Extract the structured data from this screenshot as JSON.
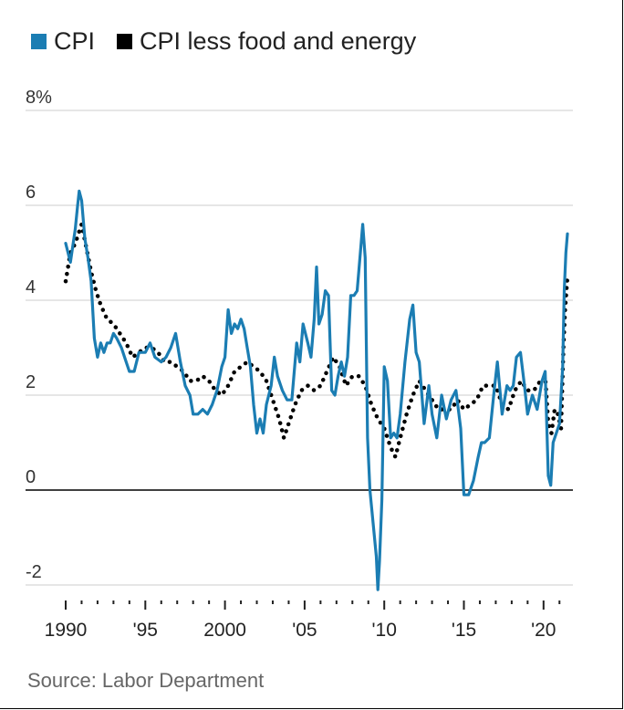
{
  "chart_data": {
    "type": "line",
    "title": "",
    "xlabel": "",
    "ylabel": "",
    "ylim": [
      -2.1,
      8
    ],
    "xlim": [
      1990,
      2021.6
    ],
    "grid": true,
    "legend_position": "top-left",
    "y_ticks": [
      {
        "value": 8,
        "label": "8%"
      },
      {
        "value": 6,
        "label": "6"
      },
      {
        "value": 4,
        "label": "4"
      },
      {
        "value": 2,
        "label": "2"
      },
      {
        "value": 0,
        "label": "0"
      },
      {
        "value": -2,
        "label": "-2"
      }
    ],
    "x_ticks": [
      {
        "value": 1990,
        "label": "1990"
      },
      {
        "value": 1995,
        "label": "'95"
      },
      {
        "value": 2000,
        "label": "2000"
      },
      {
        "value": 2005,
        "label": "'05"
      },
      {
        "value": 2010,
        "label": "'10"
      },
      {
        "value": 2015,
        "label": "'15"
      },
      {
        "value": 2020,
        "label": "'20"
      }
    ],
    "series": [
      {
        "name": "CPI",
        "color": "#1b7db3",
        "style": "solid",
        "points": [
          [
            1990.0,
            5.2
          ],
          [
            1990.3,
            4.8
          ],
          [
            1990.6,
            5.5
          ],
          [
            1990.75,
            6.0
          ],
          [
            1990.85,
            6.3
          ],
          [
            1991.0,
            6.1
          ],
          [
            1991.2,
            5.3
          ],
          [
            1991.4,
            4.9
          ],
          [
            1991.6,
            4.4
          ],
          [
            1991.8,
            3.2
          ],
          [
            1992.0,
            2.8
          ],
          [
            1992.2,
            3.1
          ],
          [
            1992.4,
            2.9
          ],
          [
            1992.6,
            3.1
          ],
          [
            1992.8,
            3.1
          ],
          [
            1993.0,
            3.3
          ],
          [
            1993.2,
            3.2
          ],
          [
            1993.5,
            3.0
          ],
          [
            1993.8,
            2.7
          ],
          [
            1994.0,
            2.5
          ],
          [
            1994.3,
            2.5
          ],
          [
            1994.6,
            2.9
          ],
          [
            1995.0,
            2.9
          ],
          [
            1995.3,
            3.1
          ],
          [
            1995.6,
            2.8
          ],
          [
            1996.0,
            2.7
          ],
          [
            1996.3,
            2.8
          ],
          [
            1996.6,
            3.0
          ],
          [
            1996.9,
            3.3
          ],
          [
            1997.2,
            2.7
          ],
          [
            1997.5,
            2.2
          ],
          [
            1997.8,
            2.0
          ],
          [
            1998.0,
            1.6
          ],
          [
            1998.3,
            1.6
          ],
          [
            1998.6,
            1.7
          ],
          [
            1998.9,
            1.6
          ],
          [
            1999.2,
            1.8
          ],
          [
            1999.5,
            2.1
          ],
          [
            1999.8,
            2.6
          ],
          [
            2000.0,
            2.8
          ],
          [
            2000.2,
            3.8
          ],
          [
            2000.4,
            3.3
          ],
          [
            2000.6,
            3.5
          ],
          [
            2000.8,
            3.4
          ],
          [
            2001.0,
            3.6
          ],
          [
            2001.2,
            3.4
          ],
          [
            2001.4,
            3.0
          ],
          [
            2001.6,
            2.6
          ],
          [
            2001.8,
            1.8
          ],
          [
            2002.0,
            1.2
          ],
          [
            2002.2,
            1.5
          ],
          [
            2002.4,
            1.2
          ],
          [
            2002.6,
            1.8
          ],
          [
            2002.9,
            2.2
          ],
          [
            2003.1,
            2.8
          ],
          [
            2003.3,
            2.4
          ],
          [
            2003.6,
            2.1
          ],
          [
            2003.9,
            1.9
          ],
          [
            2004.2,
            1.9
          ],
          [
            2004.5,
            3.1
          ],
          [
            2004.7,
            2.7
          ],
          [
            2004.9,
            3.5
          ],
          [
            2005.2,
            3.1
          ],
          [
            2005.4,
            2.8
          ],
          [
            2005.6,
            3.6
          ],
          [
            2005.75,
            4.7
          ],
          [
            2005.9,
            3.5
          ],
          [
            2006.1,
            3.7
          ],
          [
            2006.3,
            4.2
          ],
          [
            2006.5,
            4.1
          ],
          [
            2006.7,
            2.1
          ],
          [
            2006.9,
            2.0
          ],
          [
            2007.1,
            2.4
          ],
          [
            2007.3,
            2.7
          ],
          [
            2007.5,
            2.4
          ],
          [
            2007.7,
            2.8
          ],
          [
            2007.9,
            4.1
          ],
          [
            2008.1,
            4.1
          ],
          [
            2008.3,
            4.2
          ],
          [
            2008.5,
            5.0
          ],
          [
            2008.65,
            5.6
          ],
          [
            2008.8,
            4.9
          ],
          [
            2008.95,
            1.1
          ],
          [
            2009.1,
            0.0
          ],
          [
            2009.3,
            -0.7
          ],
          [
            2009.5,
            -1.4
          ],
          [
            2009.6,
            -2.1
          ],
          [
            2009.7,
            -1.5
          ],
          [
            2009.85,
            -0.2
          ],
          [
            2010.0,
            2.6
          ],
          [
            2010.2,
            2.3
          ],
          [
            2010.4,
            1.1
          ],
          [
            2010.6,
            1.2
          ],
          [
            2010.8,
            1.1
          ],
          [
            2011.0,
            1.6
          ],
          [
            2011.3,
            2.7
          ],
          [
            2011.6,
            3.6
          ],
          [
            2011.8,
            3.9
          ],
          [
            2012.0,
            2.9
          ],
          [
            2012.2,
            2.7
          ],
          [
            2012.5,
            1.4
          ],
          [
            2012.8,
            2.2
          ],
          [
            2013.0,
            1.6
          ],
          [
            2013.3,
            1.1
          ],
          [
            2013.6,
            2.0
          ],
          [
            2013.9,
            1.5
          ],
          [
            2014.2,
            1.9
          ],
          [
            2014.5,
            2.1
          ],
          [
            2014.8,
            1.3
          ],
          [
            2015.0,
            -0.1
          ],
          [
            2015.3,
            -0.1
          ],
          [
            2015.6,
            0.2
          ],
          [
            2015.9,
            0.7
          ],
          [
            2016.1,
            1.0
          ],
          [
            2016.3,
            1.0
          ],
          [
            2016.6,
            1.1
          ],
          [
            2016.9,
            2.1
          ],
          [
            2017.1,
            2.7
          ],
          [
            2017.4,
            1.6
          ],
          [
            2017.7,
            2.2
          ],
          [
            2017.9,
            2.1
          ],
          [
            2018.1,
            2.2
          ],
          [
            2018.3,
            2.8
          ],
          [
            2018.55,
            2.9
          ],
          [
            2018.8,
            2.2
          ],
          [
            2019.0,
            1.6
          ],
          [
            2019.3,
            2.0
          ],
          [
            2019.6,
            1.7
          ],
          [
            2019.9,
            2.3
          ],
          [
            2020.1,
            2.5
          ],
          [
            2020.3,
            0.3
          ],
          [
            2020.45,
            0.1
          ],
          [
            2020.6,
            1.0
          ],
          [
            2020.8,
            1.2
          ],
          [
            2021.0,
            1.4
          ],
          [
            2021.2,
            2.6
          ],
          [
            2021.3,
            4.2
          ],
          [
            2021.4,
            5.0
          ],
          [
            2021.5,
            5.4
          ]
        ]
      },
      {
        "name": "CPI less food and energy",
        "color": "#000000",
        "style": "dotted",
        "points": [
          [
            1990.0,
            4.4
          ],
          [
            1990.3,
            5.0
          ],
          [
            1990.6,
            5.2
          ],
          [
            1990.8,
            5.4
          ],
          [
            1991.0,
            5.6
          ],
          [
            1991.3,
            5.1
          ],
          [
            1991.6,
            4.6
          ],
          [
            1991.9,
            4.2
          ],
          [
            1992.2,
            3.9
          ],
          [
            1992.6,
            3.6
          ],
          [
            1993.0,
            3.5
          ],
          [
            1993.4,
            3.3
          ],
          [
            1993.8,
            3.1
          ],
          [
            1994.2,
            2.8
          ],
          [
            1994.6,
            2.9
          ],
          [
            1995.0,
            3.0
          ],
          [
            1995.4,
            3.0
          ],
          [
            1995.8,
            2.9
          ],
          [
            1996.2,
            2.7
          ],
          [
            1996.6,
            2.7
          ],
          [
            1997.0,
            2.6
          ],
          [
            1997.4,
            2.5
          ],
          [
            1997.8,
            2.3
          ],
          [
            1998.2,
            2.3
          ],
          [
            1998.6,
            2.4
          ],
          [
            1999.0,
            2.3
          ],
          [
            1999.4,
            2.1
          ],
          [
            1999.8,
            2.0
          ],
          [
            2000.2,
            2.2
          ],
          [
            2000.6,
            2.5
          ],
          [
            2001.0,
            2.6
          ],
          [
            2001.4,
            2.7
          ],
          [
            2001.8,
            2.6
          ],
          [
            2002.2,
            2.5
          ],
          [
            2002.6,
            2.3
          ],
          [
            2003.0,
            1.9
          ],
          [
            2003.4,
            1.5
          ],
          [
            2003.7,
            1.1
          ],
          [
            2004.0,
            1.4
          ],
          [
            2004.4,
            1.8
          ],
          [
            2004.8,
            2.1
          ],
          [
            2005.2,
            2.2
          ],
          [
            2005.6,
            2.1
          ],
          [
            2006.0,
            2.2
          ],
          [
            2006.4,
            2.5
          ],
          [
            2006.8,
            2.8
          ],
          [
            2007.2,
            2.6
          ],
          [
            2007.6,
            2.2
          ],
          [
            2008.0,
            2.4
          ],
          [
            2008.4,
            2.4
          ],
          [
            2008.8,
            2.2
          ],
          [
            2009.2,
            1.8
          ],
          [
            2009.6,
            1.5
          ],
          [
            2010.0,
            1.3
          ],
          [
            2010.4,
            0.9
          ],
          [
            2010.7,
            0.7
          ],
          [
            2011.0,
            1.1
          ],
          [
            2011.4,
            1.6
          ],
          [
            2011.8,
            2.0
          ],
          [
            2012.2,
            2.3
          ],
          [
            2012.6,
            2.1
          ],
          [
            2013.0,
            1.9
          ],
          [
            2013.4,
            1.7
          ],
          [
            2013.8,
            1.7
          ],
          [
            2014.2,
            1.7
          ],
          [
            2014.6,
            1.9
          ],
          [
            2015.0,
            1.7
          ],
          [
            2015.4,
            1.8
          ],
          [
            2015.8,
            1.9
          ],
          [
            2016.2,
            2.2
          ],
          [
            2016.6,
            2.2
          ],
          [
            2017.0,
            2.2
          ],
          [
            2017.4,
            1.8
          ],
          [
            2017.8,
            1.7
          ],
          [
            2018.2,
            2.1
          ],
          [
            2018.6,
            2.3
          ],
          [
            2019.0,
            2.1
          ],
          [
            2019.4,
            2.1
          ],
          [
            2019.8,
            2.3
          ],
          [
            2020.1,
            2.4
          ],
          [
            2020.3,
            1.4
          ],
          [
            2020.5,
            1.2
          ],
          [
            2020.7,
            1.7
          ],
          [
            2020.9,
            1.6
          ],
          [
            2021.1,
            1.3
          ],
          [
            2021.25,
            3.0
          ],
          [
            2021.35,
            3.8
          ],
          [
            2021.5,
            4.5
          ]
        ]
      }
    ]
  },
  "source": "Source: Labor Department"
}
